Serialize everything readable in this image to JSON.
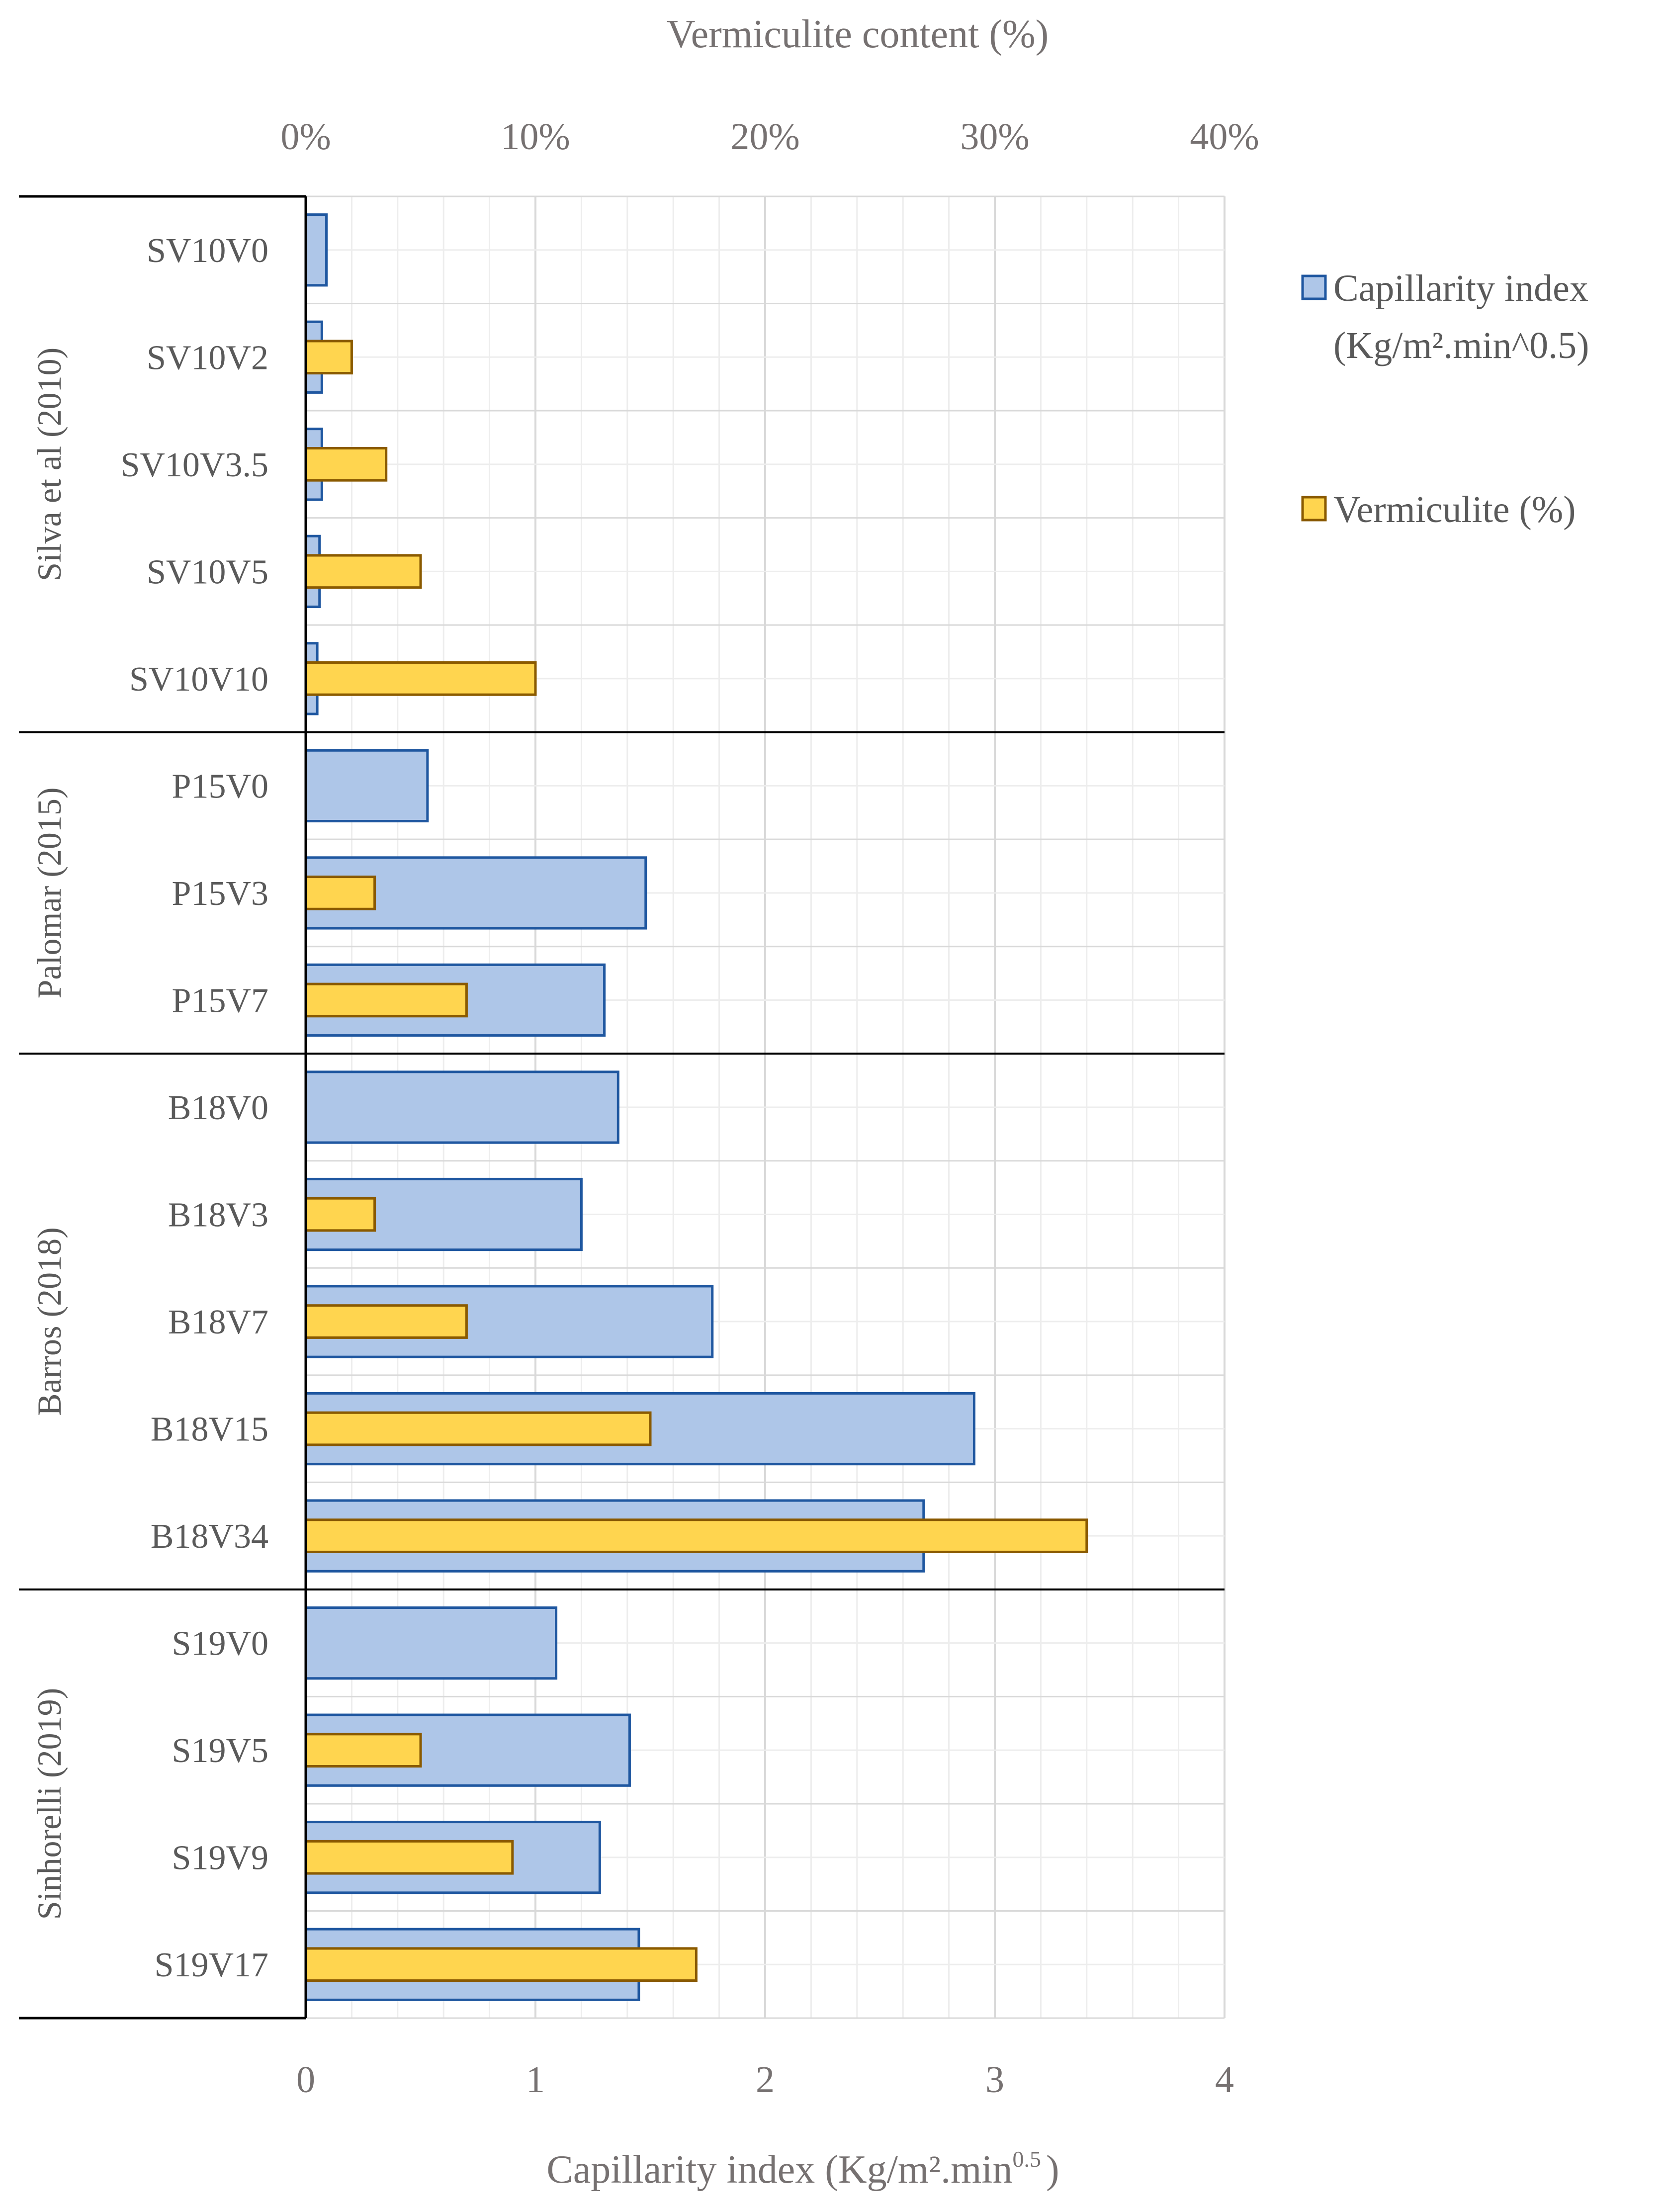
{
  "chart_data": {
    "type": "bar",
    "orientation": "horizontal",
    "colors": {
      "capillary_fill": "#aec6e8",
      "capillary_stroke": "#1f57a0",
      "vermiculite_fill": "#ffd54f",
      "vermiculite_stroke": "#8a5a00",
      "grid_major": "#d9d9d9",
      "grid_minor": "#ededed",
      "axis_text": "#767171"
    },
    "top_axis": {
      "title": "Vermiculite content (%)",
      "range": [
        0,
        40
      ],
      "ticks": [
        "0%",
        "10%",
        "20%",
        "30%",
        "40%"
      ]
    },
    "bottom_axis": {
      "title_main": "Capillarity index (Kg/m².min",
      "title_sup": "0.5",
      "title_end": ")",
      "range": [
        0,
        4
      ],
      "ticks": [
        "0",
        "1",
        "2",
        "3",
        "4"
      ]
    },
    "legend": {
      "capillary_line1": "Capillarity index",
      "capillary_line2": "(Kg/m².min^0.5)",
      "vermiculite": "Vermiculite (%)"
    },
    "groups": [
      {
        "name": "Silva et al (2010)",
        "size": 5
      },
      {
        "name": "Palomar (2015)",
        "size": 3
      },
      {
        "name": "Barros (2018)",
        "size": 5
      },
      {
        "name": "Sinhorelli (2019)",
        "size": 4
      }
    ],
    "categories": [
      "SV10V0",
      "SV10V2",
      "SV10V3.5",
      "SV10V5",
      "SV10V10",
      "P15V0",
      "P15V3",
      "P15V7",
      "B18V0",
      "B18V3",
      "B18V7",
      "B18V15",
      "B18V34",
      "S19V0",
      "S19V5",
      "S19V9",
      "S19V17"
    ],
    "series": [
      {
        "name": "Capillarity index (Kg/m².min^0.5)",
        "axis": "bottom",
        "values": [
          0.09,
          0.07,
          0.07,
          0.06,
          0.05,
          0.53,
          1.48,
          1.3,
          1.36,
          1.2,
          1.77,
          2.91,
          2.69,
          1.09,
          1.41,
          1.28,
          1.45
        ]
      },
      {
        "name": "Vermiculite (%)",
        "axis": "top",
        "values": [
          0,
          2,
          3.5,
          5,
          10,
          0,
          3,
          7,
          0,
          3,
          7,
          15,
          34,
          0,
          5,
          9,
          17
        ]
      }
    ]
  }
}
